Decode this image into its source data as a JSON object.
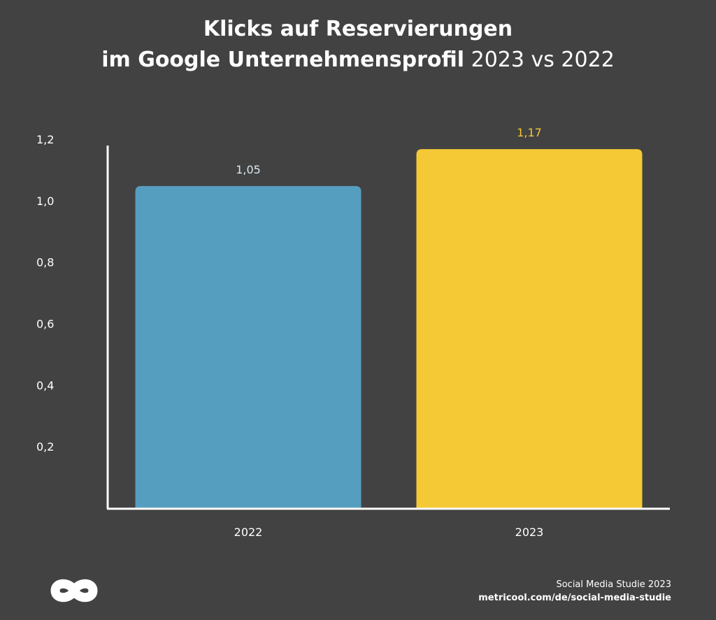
{
  "title": {
    "line1": "Klicks auf Reservierungen",
    "line2_bold": "im Google Unternehmensprofil",
    "line2_light": "2023 vs 2022"
  },
  "chart_data": {
    "type": "bar",
    "categories": [
      "2022",
      "2023"
    ],
    "values": [
      1.05,
      1.17
    ],
    "value_labels": [
      "1,05",
      "1,17"
    ],
    "colors": [
      "#569ec0",
      "#f4c935"
    ],
    "value_label_colors": [
      "#d9e8f0",
      "#f4c935"
    ],
    "yticks": [
      {
        "value": 1.2,
        "label": "1,2"
      },
      {
        "value": 1.0,
        "label": "1,0"
      },
      {
        "value": 0.8,
        "label": "0,8"
      },
      {
        "value": 0.6,
        "label": "0,6"
      },
      {
        "value": 0.4,
        "label": "0,4"
      },
      {
        "value": 0.2,
        "label": "0,2"
      }
    ],
    "ylim": [
      0,
      1.2
    ],
    "grid": false,
    "title": "Klicks auf Reservierungen im Google Unternehmensprofil 2023 vs 2022",
    "xlabel": "",
    "ylabel": ""
  },
  "footer": {
    "study": "Social Media Studie 2023",
    "url": "metricool.com/de/social-media-studie"
  },
  "colors": {
    "background": "#424242",
    "text": "#ffffff"
  },
  "logo_icon": "metricool-infinity-logo"
}
